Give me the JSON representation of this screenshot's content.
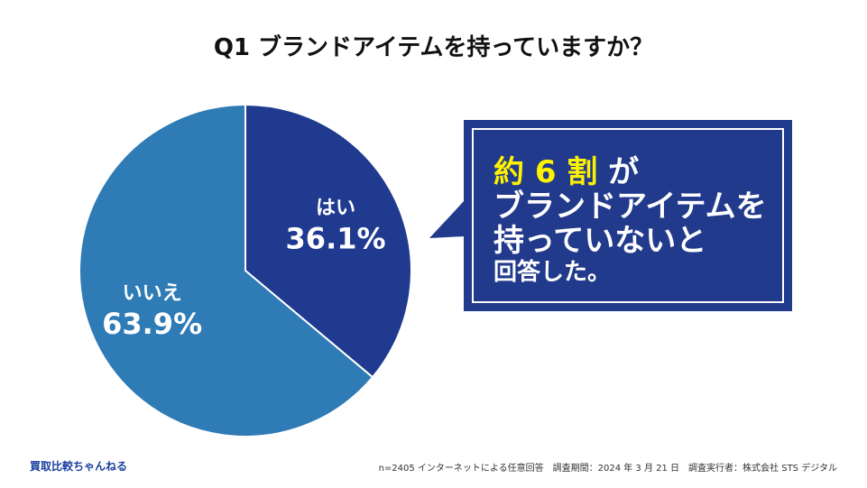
{
  "chart_data": {
    "type": "pie",
    "title": "Q1 ブランドアイテムを持っていますか？",
    "slices": [
      {
        "label": "はい",
        "value": 36.1,
        "value_label": "36.1%",
        "color": "#1f3a8f"
      },
      {
        "label": "いいえ",
        "value": 63.9,
        "value_label": "63.9%",
        "color": "#2f7bb6"
      }
    ],
    "start": "12 o'clock",
    "direction": "clockwise"
  },
  "callout": {
    "highlight": "約 6 割",
    "line1_rest": " が",
    "line2": "ブランドアイテムを",
    "line3": "持っていないと",
    "line4": "回答した。"
  },
  "footer": {
    "brand": "買取比較ちゃんねる",
    "source": "n=2405 インターネットによる任意回答　調査期間：2024 年 3 月 21 日　調査実行者：株式会社 STS デジタル"
  }
}
